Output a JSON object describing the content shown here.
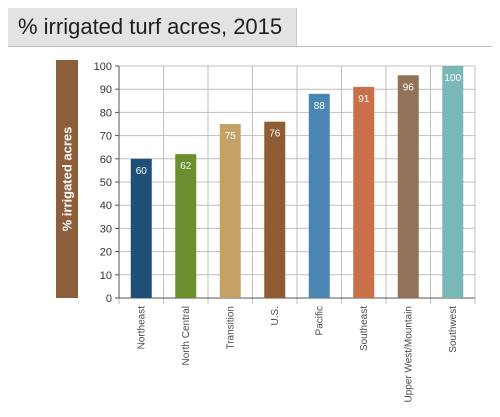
{
  "chart_data": {
    "type": "bar",
    "title": "% irrigated turf acres, 2015",
    "ylabel": "% irrigated acres",
    "xlabel": "",
    "ylim": [
      0,
      100
    ],
    "yticks": [
      0,
      10,
      20,
      30,
      40,
      50,
      60,
      70,
      80,
      90,
      100
    ],
    "grid": true,
    "categories": [
      "Northeast",
      "North Central",
      "Transition",
      "U.S.",
      "Pacific",
      "Southeast",
      "Upper West/Mountain",
      "Southwest"
    ],
    "values": [
      60,
      62,
      75,
      76,
      88,
      91,
      96,
      100
    ],
    "value_labels": [
      "60",
      "62",
      "75",
      "76",
      "88",
      "91",
      "96",
      "100"
    ],
    "colors": [
      "#1f4e79",
      "#6b8e2e",
      "#c4a265",
      "#8e5b33",
      "#4b86b2",
      "#c9704a",
      "#907359",
      "#7ab8b8"
    ]
  }
}
